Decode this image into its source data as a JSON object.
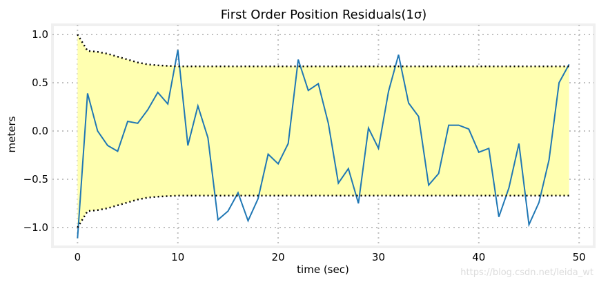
{
  "chart_data": {
    "type": "line",
    "title": "First Order Position Residuals(1σ)",
    "xlabel": "time (sec)",
    "ylabel": "meters",
    "xlim": [
      -2.5,
      51.5
    ],
    "ylim": [
      -1.2,
      1.1
    ],
    "xticks": [
      0,
      10,
      20,
      30,
      40,
      50
    ],
    "xtick_labels": [
      "0",
      "10",
      "20",
      "30",
      "40",
      "50"
    ],
    "yticks": [
      -1.0,
      -0.5,
      0.0,
      0.5,
      1.0
    ],
    "ytick_labels": [
      "−1.0",
      "−0.5",
      "0.0",
      "0.5",
      "1.0"
    ],
    "grid": true,
    "x": [
      0,
      1,
      2,
      3,
      4,
      5,
      6,
      7,
      8,
      9,
      10,
      11,
      12,
      13,
      14,
      15,
      16,
      17,
      18,
      19,
      20,
      21,
      22,
      23,
      24,
      25,
      26,
      27,
      28,
      29,
      30,
      31,
      32,
      33,
      34,
      35,
      36,
      37,
      38,
      39,
      40,
      41,
      42,
      43,
      44,
      45,
      46,
      47,
      48,
      49
    ],
    "series": [
      {
        "values": [
          -1.11,
          0.39,
          0.0,
          -0.15,
          -0.21,
          0.1,
          0.08,
          0.22,
          0.4,
          0.28,
          0.84,
          -0.15,
          0.26,
          -0.07,
          -0.92,
          -0.83,
          -0.64,
          -0.93,
          -0.7,
          -0.24,
          -0.34,
          -0.13,
          0.74,
          0.42,
          0.49,
          0.08,
          -0.54,
          -0.39,
          -0.75,
          0.03,
          -0.18,
          0.41,
          0.79,
          0.29,
          0.15,
          -0.56,
          -0.44,
          0.06,
          0.06,
          0.02,
          -0.22,
          -0.18,
          -0.89,
          -0.59,
          -0.13,
          -0.97,
          -0.74,
          -0.3,
          0.5,
          0.69
        ],
        "color": "#1f77b4"
      }
    ],
    "bound": {
      "upper": [
        1.0,
        0.83,
        0.82,
        0.8,
        0.77,
        0.74,
        0.71,
        0.69,
        0.68,
        0.675,
        0.67,
        0.67,
        0.67,
        0.67,
        0.67,
        0.67,
        0.67,
        0.67,
        0.67,
        0.67,
        0.67,
        0.67,
        0.67,
        0.67,
        0.67,
        0.67,
        0.67,
        0.67,
        0.67,
        0.67,
        0.67,
        0.67,
        0.67,
        0.67,
        0.67,
        0.67,
        0.67,
        0.67,
        0.67,
        0.67,
        0.67,
        0.67,
        0.67,
        0.67,
        0.67,
        0.67,
        0.67,
        0.67,
        0.67,
        0.67
      ],
      "fill_color": "#ffffb0",
      "line_color": "#000000"
    }
  },
  "watermark": "https://blog.csdn.net/leida_wt"
}
